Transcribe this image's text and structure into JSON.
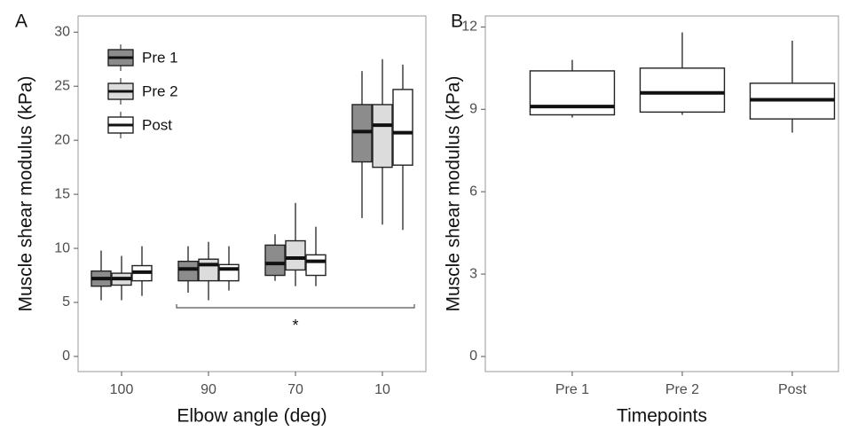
{
  "chart_data": [
    {
      "type": "box",
      "panel_label": "A",
      "x_label": "Elbow angle (deg)",
      "y_label": "Muscle shear modulus (kPa)",
      "categories": [
        "100",
        "90",
        "70",
        "10"
      ],
      "ylim": [
        -1.4,
        31.5
      ],
      "yticks": [
        0,
        5,
        10,
        15,
        20,
        25,
        30
      ],
      "legend": "top-left",
      "annotation": "*",
      "series": [
        {
          "name": "Pre 1",
          "color": "#8c8c8c",
          "boxes": [
            {
              "low": 5.2,
              "q1": 6.5,
              "median": 7.2,
              "q3": 7.9,
              "high": 9.8
            },
            {
              "low": 5.9,
              "q1": 7.0,
              "median": 8.1,
              "q3": 8.8,
              "high": 10.2
            },
            {
              "low": 7.0,
              "q1": 7.5,
              "median": 8.6,
              "q3": 10.3,
              "high": 11.3
            },
            {
              "low": 12.8,
              "q1": 18.0,
              "median": 20.8,
              "q3": 23.3,
              "high": 26.4
            }
          ]
        },
        {
          "name": "Pre 2",
          "color": "#dcdcdc",
          "boxes": [
            {
              "low": 5.2,
              "q1": 6.6,
              "median": 7.2,
              "q3": 7.7,
              "high": 9.3
            },
            {
              "low": 5.2,
              "q1": 7.0,
              "median": 8.5,
              "q3": 9.0,
              "high": 10.6
            },
            {
              "low": 6.5,
              "q1": 8.0,
              "median": 9.1,
              "q3": 10.7,
              "high": 14.2
            },
            {
              "low": 12.2,
              "q1": 17.5,
              "median": 21.4,
              "q3": 23.3,
              "high": 27.5
            }
          ]
        },
        {
          "name": "Post",
          "color": "#ffffff",
          "boxes": [
            {
              "low": 5.6,
              "q1": 7.0,
              "median": 7.8,
              "q3": 8.4,
              "high": 10.2
            },
            {
              "low": 6.1,
              "q1": 7.0,
              "median": 8.1,
              "q3": 8.5,
              "high": 10.2
            },
            {
              "low": 6.5,
              "q1": 7.5,
              "median": 8.8,
              "q3": 9.4,
              "high": 12.0
            },
            {
              "low": 11.7,
              "q1": 17.7,
              "median": 20.7,
              "q3": 24.7,
              "high": 27.0
            }
          ]
        }
      ]
    },
    {
      "type": "box",
      "panel_label": "B",
      "x_label": "Timepoints",
      "y_label": "Muscle shear modulus (kPa)",
      "categories": [
        "Pre 1",
        "Pre 2",
        "Post"
      ],
      "ylim": [
        -0.55,
        12.4
      ],
      "yticks": [
        0,
        3,
        6,
        9,
        12
      ],
      "series": [
        {
          "color": "#ffffff",
          "boxes": [
            {
              "low": 8.7,
              "q1": 8.8,
              "median": 9.1,
              "q3": 10.4,
              "high": 10.8
            },
            {
              "low": 8.8,
              "q1": 8.9,
              "median": 9.6,
              "q3": 10.5,
              "high": 11.8
            },
            {
              "low": 8.15,
              "q1": 8.65,
              "median": 9.35,
              "q3": 9.95,
              "high": 11.5
            }
          ]
        }
      ]
    }
  ]
}
